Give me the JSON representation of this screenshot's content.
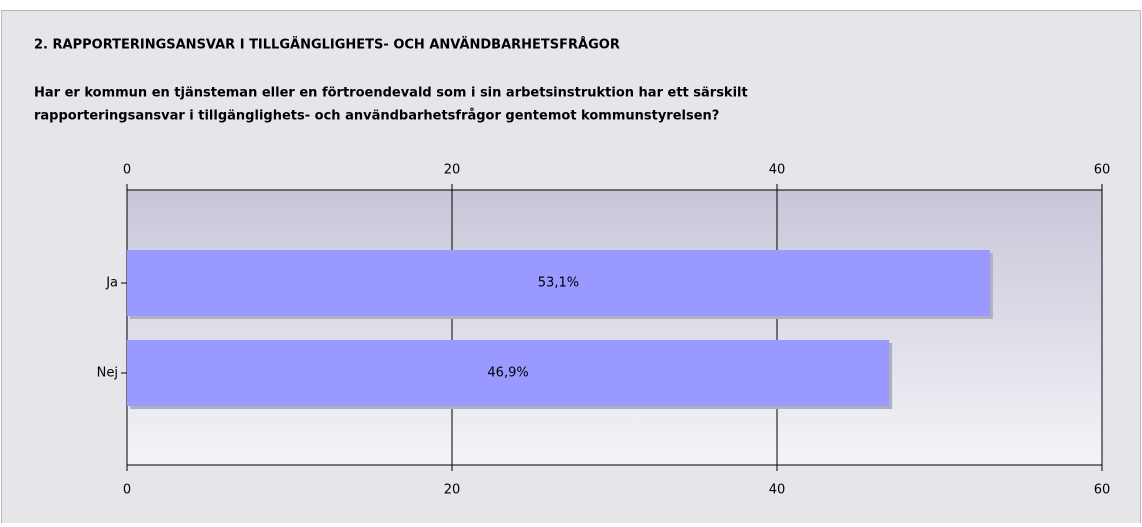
{
  "chart_data": {
    "type": "barh",
    "title": "2. RAPPORTERINGSANSVAR I TILLGÄNGLIGHETS- OCH ANVÄNDBARHETSFRÅGOR",
    "subtitle": [
      "Har er kommun en tjänsteman eller en förtroendevald som i sin arbetsinstruktion har ett särskilt",
      "rapporteringsansvar i tillgänglighets- och användbarhetsfrågor gentemot kommunstyrelsen?"
    ],
    "categories": [
      "Ja",
      "Nej"
    ],
    "values": [
      53.1,
      46.9
    ],
    "value_labels": [
      "53,1%",
      "46,9%"
    ],
    "color": "#9999ff",
    "xlim": [
      0,
      60
    ],
    "xticks": [
      0,
      20,
      40,
      60
    ],
    "grid": true
  }
}
